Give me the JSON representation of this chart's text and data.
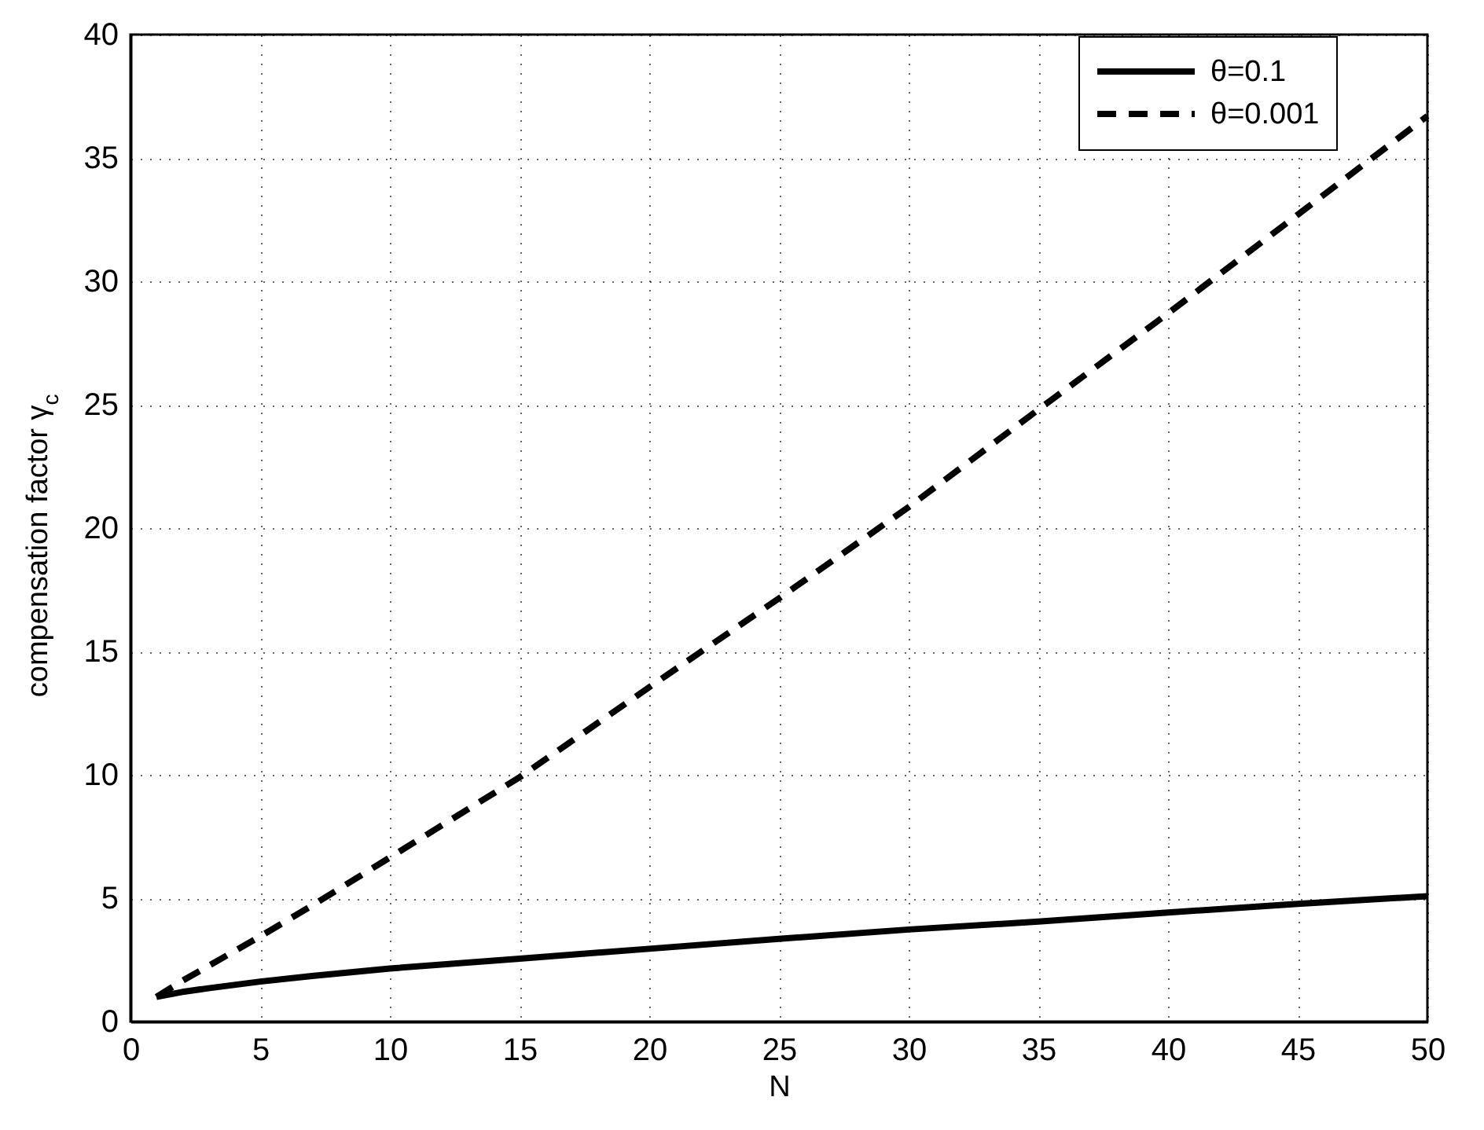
{
  "chart_data": {
    "type": "line",
    "xlabel": "N",
    "ylabel": "compensation factor γ$_{c}$",
    "x": [
      1,
      2,
      3,
      5,
      7,
      10,
      15,
      20,
      25,
      30,
      35,
      40,
      45,
      50
    ],
    "series": [
      {
        "name": "θ=0.1",
        "color": "#000000",
        "line_style": "solid",
        "values": [
          1.0,
          1.2,
          1.35,
          1.62,
          1.85,
          2.15,
          2.55,
          2.95,
          3.35,
          3.73,
          4.05,
          4.42,
          4.77,
          5.08
        ]
      },
      {
        "name": "θ=0.001",
        "color": "#000000",
        "line_style": "dashed",
        "values": [
          1.0,
          1.65,
          2.25,
          3.45,
          4.7,
          6.65,
          9.9,
          13.55,
          17.15,
          20.85,
          24.8,
          28.7,
          32.7,
          36.7
        ]
      }
    ],
    "xlim": [
      0,
      50
    ],
    "ylim": [
      0,
      40
    ],
    "xticks": [
      0,
      5,
      10,
      15,
      20,
      25,
      30,
      35,
      40,
      45,
      50
    ],
    "yticks": [
      0,
      5,
      10,
      15,
      20,
      25,
      30,
      35,
      40
    ],
    "grid": true,
    "legend": "top right"
  }
}
